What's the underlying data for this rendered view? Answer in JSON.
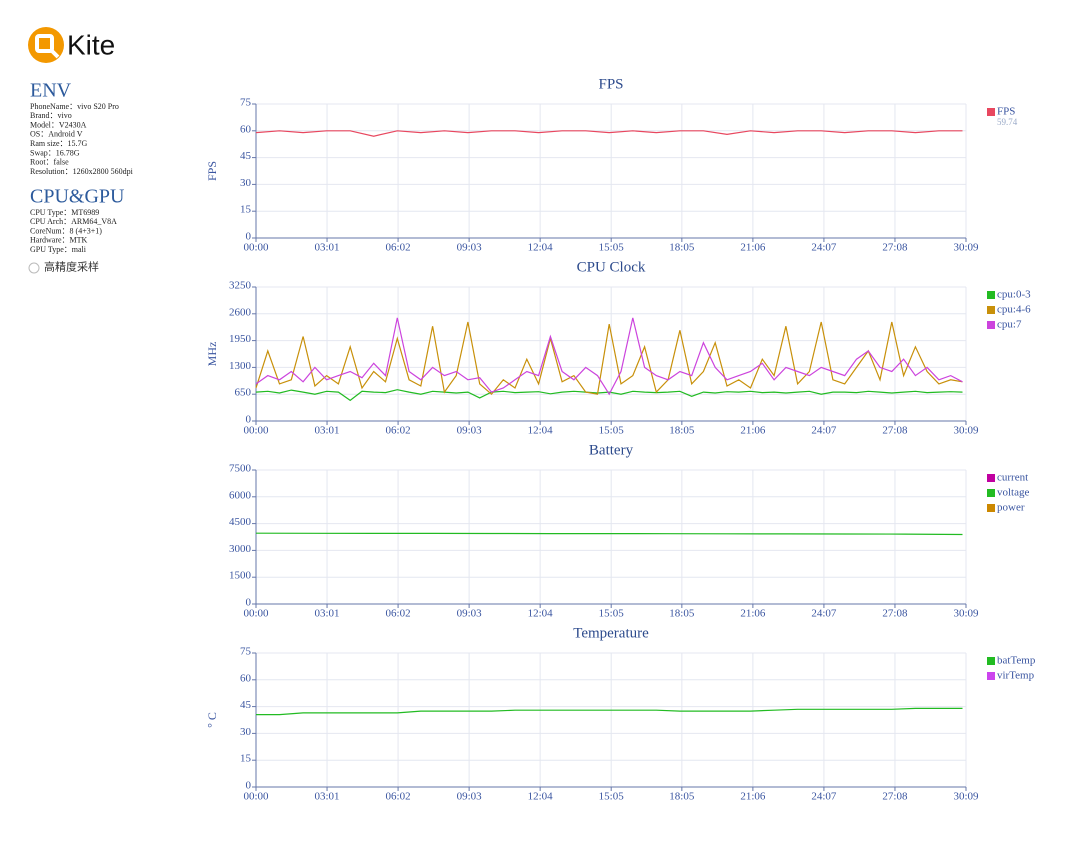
{
  "sidebar": {
    "logo": "Kite",
    "env": {
      "title": "ENV",
      "lines": [
        "PhoneName：vivo S20 Pro",
        "Brand：vivo",
        "Model：V2430A",
        "OS：Android V",
        "Ram size：15.7G",
        "Swap：16.78G",
        "Root：false",
        "Resolution：1260x2800 560dpi"
      ]
    },
    "cpu_gpu": {
      "title": "CPU&GPU",
      "lines": [
        "CPU Type：MT6989",
        "CPU Arch：ARM64_V8A",
        "CoreNum：8 (4+3+1)",
        "Hardware：MTK",
        "GPU Type：mali"
      ]
    },
    "option": "高精度采样"
  },
  "chart_data": [
    {
      "type": "line",
      "title": "FPS",
      "ylabel": "FPS",
      "x": [
        0,
        60,
        120,
        180,
        240,
        300,
        360,
        420,
        480,
        540,
        600,
        660,
        720,
        780,
        840,
        900,
        960,
        1020,
        1080,
        1140,
        1200,
        1260,
        1320,
        1380,
        1440,
        1500,
        1560,
        1620,
        1680,
        1740,
        1800
      ],
      "series": [
        {
          "name": "FPS",
          "color": "#e8475f",
          "average": 59.74,
          "values": [
            59,
            60,
            59,
            60,
            60,
            57,
            60,
            59,
            60,
            59,
            60,
            60,
            59,
            60,
            60,
            59,
            60,
            59,
            60,
            60,
            58,
            60,
            59,
            60,
            60,
            59,
            60,
            60,
            59,
            60,
            60
          ]
        }
      ],
      "xlim": [
        0,
        1809
      ],
      "ylim": [
        0,
        75
      ],
      "yticks": [
        0,
        15,
        30,
        45,
        60,
        75
      ],
      "xticks": [
        {
          "value": 0,
          "label": "00:00"
        },
        {
          "value": 181,
          "label": "03:01"
        },
        {
          "value": 362,
          "label": "06:02"
        },
        {
          "value": 543,
          "label": "09:03"
        },
        {
          "value": 724,
          "label": "12:04"
        },
        {
          "value": 905,
          "label": "15:05"
        },
        {
          "value": 1085,
          "label": "18:05"
        },
        {
          "value": 1266,
          "label": "21:06"
        },
        {
          "value": 1447,
          "label": "24:07"
        },
        {
          "value": 1628,
          "label": "27:08"
        },
        {
          "value": 1809,
          "label": "30:09"
        }
      ],
      "grid": true
    },
    {
      "type": "line",
      "title": "CPU Clock",
      "ylabel": "MHz",
      "x": [
        0,
        30,
        60,
        90,
        120,
        150,
        180,
        210,
        240,
        270,
        300,
        330,
        360,
        390,
        420,
        450,
        480,
        510,
        540,
        570,
        600,
        630,
        660,
        690,
        720,
        750,
        780,
        810,
        840,
        870,
        900,
        930,
        960,
        990,
        1020,
        1050,
        1080,
        1110,
        1140,
        1170,
        1200,
        1230,
        1260,
        1290,
        1320,
        1350,
        1380,
        1410,
        1440,
        1470,
        1500,
        1530,
        1560,
        1590,
        1620,
        1650,
        1680,
        1710,
        1740,
        1770,
        1800
      ],
      "series": [
        {
          "name": "cpu:0-3",
          "color": "#22bb22",
          "values": [
            700,
            720,
            680,
            750,
            700,
            650,
            720,
            700,
            500,
            720,
            700,
            690,
            760,
            700,
            650,
            720,
            700,
            680,
            700,
            560,
            700,
            720,
            690,
            700,
            710,
            660,
            700,
            720,
            700,
            680,
            700,
            650,
            720,
            700,
            690,
            700,
            720,
            600,
            700,
            680,
            710,
            700,
            720,
            690,
            700,
            680,
            700,
            720,
            650,
            700,
            700,
            690,
            720,
            700,
            680,
            700,
            720,
            690,
            700,
            710,
            700
          ]
        },
        {
          "name": "cpu:4-6",
          "color": "#c8900a",
          "values": [
            800,
            1700,
            900,
            1000,
            2050,
            850,
            1100,
            900,
            1800,
            800,
            1200,
            950,
            2000,
            1000,
            850,
            2300,
            700,
            1100,
            2400,
            900,
            650,
            1000,
            800,
            1500,
            900,
            2000,
            950,
            1100,
            700,
            650,
            2350,
            900,
            1100,
            1800,
            700,
            1000,
            2200,
            900,
            1200,
            1900,
            850,
            1000,
            800,
            1500,
            1100,
            2300,
            900,
            1200,
            2400,
            1000,
            900,
            1300,
            1700,
            1000,
            2400,
            1100,
            1800,
            1200,
            900,
            1000,
            950
          ]
        },
        {
          "name": "cpu:7",
          "color": "#cc44dd",
          "values": [
            900,
            1100,
            1000,
            1200,
            950,
            1300,
            1000,
            1100,
            1200,
            1050,
            1400,
            1100,
            2500,
            1200,
            1000,
            1300,
            1100,
            1200,
            1000,
            1050,
            700,
            800,
            1000,
            1200,
            1100,
            2050,
            1200,
            1000,
            1300,
            1100,
            650,
            1200,
            2500,
            1300,
            1100,
            1000,
            1200,
            1100,
            1900,
            1300,
            1000,
            1100,
            1200,
            1400,
            1000,
            1300,
            1200,
            1100,
            1300,
            1200,
            1100,
            1500,
            1700,
            1300,
            1200,
            1500,
            1100,
            1300,
            1000,
            1100,
            950
          ]
        }
      ],
      "xlim": [
        0,
        1809
      ],
      "ylim": [
        0,
        3250
      ],
      "yticks": [
        0,
        650,
        1300,
        1950,
        2600,
        3250
      ],
      "xticks": [
        {
          "value": 0,
          "label": "00:00"
        },
        {
          "value": 181,
          "label": "03:01"
        },
        {
          "value": 362,
          "label": "06:02"
        },
        {
          "value": 543,
          "label": "09:03"
        },
        {
          "value": 724,
          "label": "12:04"
        },
        {
          "value": 905,
          "label": "15:05"
        },
        {
          "value": 1085,
          "label": "18:05"
        },
        {
          "value": 1266,
          "label": "21:06"
        },
        {
          "value": 1447,
          "label": "24:07"
        },
        {
          "value": 1628,
          "label": "27:08"
        },
        {
          "value": 1809,
          "label": "30:09"
        }
      ],
      "grid": true
    },
    {
      "type": "line",
      "title": "Battery",
      "x": [
        0,
        150,
        300,
        450,
        600,
        750,
        900,
        1050,
        1200,
        1350,
        1500,
        1650,
        1800
      ],
      "series": [
        {
          "name": "current",
          "color": "#c000a0",
          "values": [
            null,
            null,
            null,
            null,
            null,
            null,
            null,
            null,
            null,
            null,
            null,
            null,
            null
          ]
        },
        {
          "name": "voltage",
          "color": "#22bb22",
          "values": [
            3960,
            3955,
            3950,
            3950,
            3945,
            3940,
            3940,
            3935,
            3930,
            3925,
            3920,
            3910,
            3890
          ]
        },
        {
          "name": "power",
          "color": "#cc8800",
          "values": [
            null,
            null,
            null,
            null,
            null,
            null,
            null,
            null,
            null,
            null,
            null,
            null,
            null
          ]
        }
      ],
      "xlim": [
        0,
        1809
      ],
      "ylim": [
        0,
        7500
      ],
      "yticks": [
        0,
        1500,
        3000,
        4500,
        6000,
        7500
      ],
      "xticks": [
        {
          "value": 0,
          "label": "00:00"
        },
        {
          "value": 181,
          "label": "03:01"
        },
        {
          "value": 362,
          "label": "06:02"
        },
        {
          "value": 543,
          "label": "09:03"
        },
        {
          "value": 724,
          "label": "12:04"
        },
        {
          "value": 905,
          "label": "15:05"
        },
        {
          "value": 1085,
          "label": "18:05"
        },
        {
          "value": 1266,
          "label": "21:06"
        },
        {
          "value": 1447,
          "label": "24:07"
        },
        {
          "value": 1628,
          "label": "27:08"
        },
        {
          "value": 1809,
          "label": "30:09"
        }
      ],
      "grid": true
    },
    {
      "type": "line",
      "title": "Temperature",
      "ylabel": "° C",
      "x": [
        0,
        60,
        120,
        180,
        240,
        300,
        360,
        420,
        480,
        540,
        600,
        660,
        720,
        780,
        840,
        900,
        960,
        1020,
        1080,
        1140,
        1200,
        1260,
        1320,
        1380,
        1440,
        1500,
        1560,
        1620,
        1680,
        1740,
        1800
      ],
      "series": [
        {
          "name": "batTemp",
          "color": "#22bb22",
          "values": [
            40.5,
            40.5,
            41.5,
            41.5,
            41.5,
            41.5,
            41.5,
            42.5,
            42.5,
            42.5,
            42.5,
            43,
            43,
            43,
            43,
            43,
            43,
            43,
            42.5,
            42.5,
            42.5,
            42.5,
            43,
            43.5,
            43.5,
            43.5,
            43.5,
            43.5,
            44,
            44,
            44
          ]
        },
        {
          "name": "virTemp",
          "color": "#cc44ee",
          "values": [
            null,
            null,
            null,
            null,
            null,
            null,
            null,
            null,
            null,
            null,
            null,
            null,
            null,
            null,
            null,
            null,
            null,
            null,
            null,
            null,
            null,
            null,
            null,
            null,
            null,
            null,
            null,
            null,
            null,
            null,
            null
          ]
        }
      ],
      "xlim": [
        0,
        1809
      ],
      "ylim": [
        0,
        75
      ],
      "yticks": [
        0,
        15,
        30,
        45,
        60,
        75
      ],
      "xticks": [
        {
          "value": 0,
          "label": "00:00"
        },
        {
          "value": 181,
          "label": "03:01"
        },
        {
          "value": 362,
          "label": "06:02"
        },
        {
          "value": 543,
          "label": "09:03"
        },
        {
          "value": 724,
          "label": "12:04"
        },
        {
          "value": 905,
          "label": "15:05"
        },
        {
          "value": 1085,
          "label": "18:05"
        },
        {
          "value": 1266,
          "label": "21:06"
        },
        {
          "value": 1447,
          "label": "24:07"
        },
        {
          "value": 1628,
          "label": "27:08"
        },
        {
          "value": 1809,
          "label": "30:09"
        }
      ],
      "grid": true
    }
  ]
}
